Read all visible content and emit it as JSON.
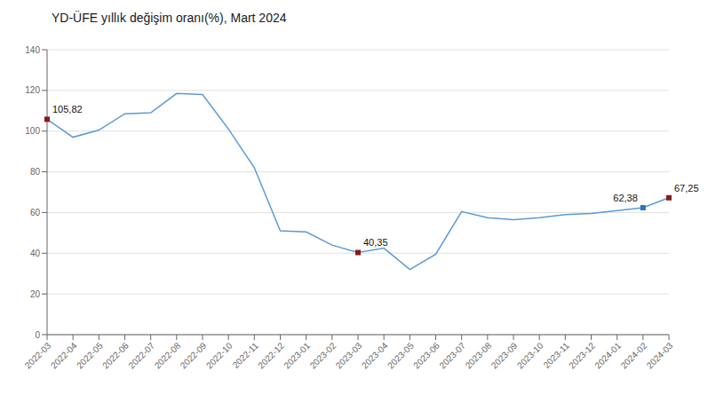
{
  "chart_data": {
    "type": "line",
    "title": "YD-ÜFE yıllık değişim oranı(%), Mart 2024",
    "categories": [
      "2022-03",
      "2022-04",
      "2022-05",
      "2022-06",
      "2022-07",
      "2022-08",
      "2022-09",
      "2022-10",
      "2022-11",
      "2022-12",
      "2023-01",
      "2023-02",
      "2023-03",
      "2023-04",
      "2023-05",
      "2023-06",
      "2023-07",
      "2023-08",
      "2023-09",
      "2023-10",
      "2023-11",
      "2023-12",
      "2024-01",
      "2024-02",
      "2024-03"
    ],
    "values": [
      105.82,
      97.0,
      100.5,
      108.5,
      109.0,
      118.5,
      118.0,
      101.0,
      82.0,
      51.0,
      50.5,
      44.0,
      40.35,
      42.5,
      32.0,
      39.5,
      60.5,
      57.5,
      56.5,
      57.5,
      59.0,
      59.5,
      61.0,
      62.38,
      67.25
    ],
    "color": "#5b9bd5",
    "ylim": [
      0,
      140
    ],
    "yticks": [
      0,
      20,
      40,
      60,
      80,
      100,
      120,
      140
    ],
    "grid": true,
    "annotations": [
      {
        "x": "2022-03",
        "y": 105.82,
        "label": "105,82",
        "color": "#8b1a1a",
        "marker": "square"
      },
      {
        "x": "2023-03",
        "y": 40.35,
        "label": "40,35",
        "color": "#8b1a1a",
        "marker": "square"
      },
      {
        "x": "2024-02",
        "y": 62.38,
        "label": "62,38",
        "color": "#2e74b5",
        "marker": "square"
      },
      {
        "x": "2024-03",
        "y": 67.25,
        "label": "67,25",
        "color": "#8b1a1a",
        "marker": "square"
      }
    ]
  }
}
